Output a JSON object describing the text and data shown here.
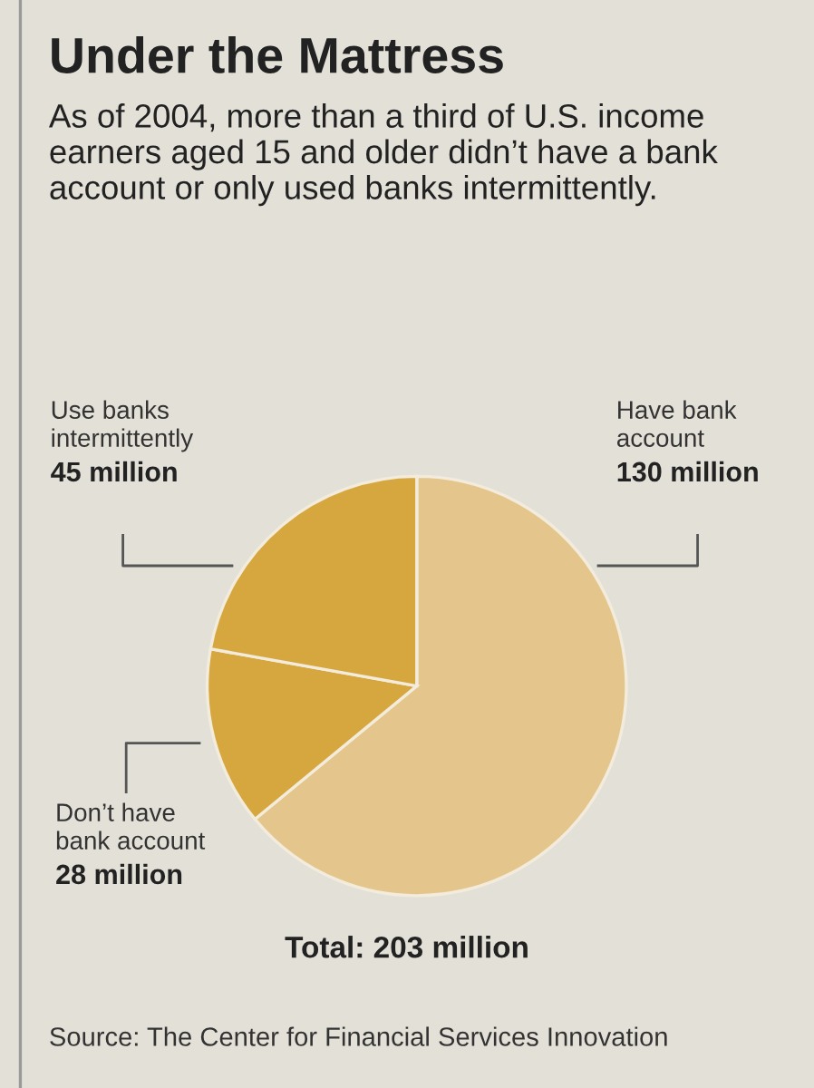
{
  "chart_data": {
    "type": "pie",
    "title": "Under the Mattress",
    "subtitle": "As of 2004, more than a third of U.S. income earners aged 15 and older didn’t have a bank account or only used banks intermittently.",
    "categories": [
      "Have bank\naccount",
      "Don’t have\nbank account",
      "Use banks\nintermittently"
    ],
    "values": [
      130,
      28,
      45
    ],
    "value_labels": [
      "130 million",
      "28 million",
      "45 million"
    ],
    "colors": [
      "#e4c68c",
      "#d6a73f",
      "#d6a73f"
    ],
    "annotations": [
      "Total: 203 million",
      "Source: The Center for Financial Services Innovation"
    ]
  }
}
